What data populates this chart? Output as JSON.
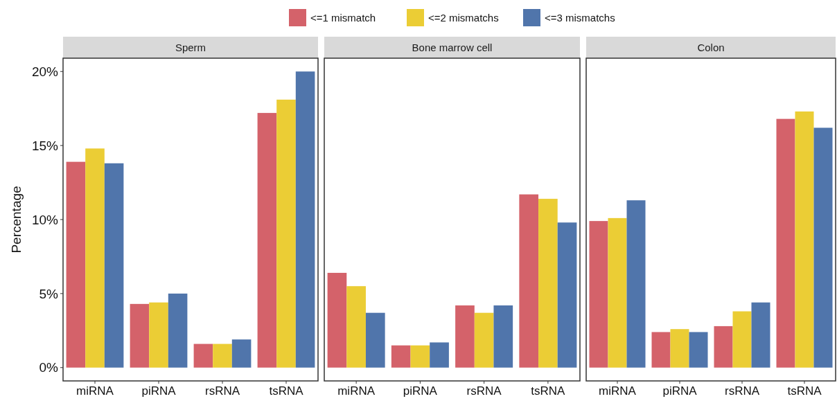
{
  "chart_data": [
    {
      "type": "bar",
      "title": "Sperm",
      "ylabel": "Percentage",
      "categories": [
        "miRNA",
        "piRNA",
        "rsRNA",
        "tsRNA"
      ],
      "legend": "top",
      "grid": false,
      "ylim": [
        -0.9,
        20.9
      ],
      "yticks": [
        {
          "value": 0,
          "label": "0%"
        },
        {
          "value": 5,
          "label": "5%"
        },
        {
          "value": 10,
          "label": "10%"
        },
        {
          "value": 15,
          "label": "15%"
        },
        {
          "value": 20,
          "label": "20%"
        }
      ],
      "series": [
        {
          "name": "<=1 mismatch",
          "color": "#d4626a",
          "values": [
            13.9,
            4.3,
            1.6,
            17.2
          ]
        },
        {
          "name": "<=2 mismatchs",
          "color": "#ebcd35",
          "values": [
            14.8,
            4.4,
            1.6,
            18.1
          ]
        },
        {
          "name": "<=3 mismatchs",
          "color": "#5075ab",
          "values": [
            13.8,
            5.0,
            1.9,
            20.0
          ]
        }
      ]
    },
    {
      "type": "bar",
      "title": "Bone marrow cell",
      "categories": [
        "miRNA",
        "piRNA",
        "rsRNA",
        "tsRNA"
      ],
      "grid": false,
      "tick_labels": "x",
      "ylim": [
        -0.9,
        20.9
      ],
      "series": [
        {
          "color": "#d4626a",
          "values": [
            6.4,
            1.5,
            4.2,
            11.7
          ]
        },
        {
          "color": "#ebcd35",
          "values": [
            5.5,
            1.5,
            3.7,
            11.4
          ]
        },
        {
          "color": "#5075ab",
          "values": [
            3.7,
            1.7,
            4.2,
            9.8
          ]
        }
      ]
    },
    {
      "type": "bar",
      "title": "Colon",
      "categories": [
        "miRNA",
        "piRNA",
        "rsRNA",
        "tsRNA"
      ],
      "grid": false,
      "tick_labels": "x",
      "ylim": [
        -0.9,
        20.9
      ],
      "series": [
        {
          "color": "#d4626a",
          "values": [
            9.9,
            2.4,
            2.8,
            16.8
          ]
        },
        {
          "color": "#ebcd35",
          "values": [
            10.1,
            2.6,
            3.8,
            17.3
          ]
        },
        {
          "color": "#5075ab",
          "values": [
            11.3,
            2.4,
            4.4,
            16.2
          ]
        }
      ]
    }
  ]
}
